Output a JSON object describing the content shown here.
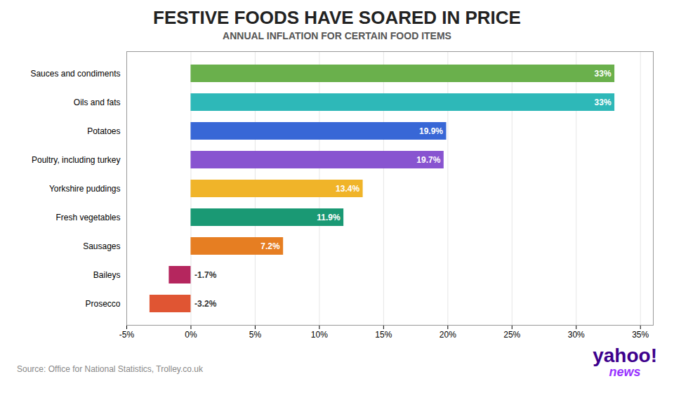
{
  "chart_data": {
    "type": "bar",
    "orientation": "horizontal",
    "title": "FESTIVE FOODS HAVE SOARED IN PRICE",
    "subtitle": "ANNUAL INFLATION FOR CERTAIN FOOD ITEMS",
    "categories": [
      "Sauces and condiments",
      "Oils and fats",
      "Potatoes",
      "Poultry, including turkey",
      "Yorkshire puddings",
      "Fresh vegetables",
      "Sausages",
      "Baileys",
      "Prosecco"
    ],
    "values": [
      33.0,
      33.0,
      19.9,
      19.7,
      13.4,
      11.9,
      7.2,
      -1.7,
      -3.2
    ],
    "value_labels": [
      "33%",
      "33%",
      "19.9%",
      "19.7%",
      "13.4%",
      "11.9%",
      "7.2%",
      "-1.7%",
      "-3.2%"
    ],
    "data_labels": true,
    "colors": [
      "#6ab04c",
      "#2eb8b8",
      "#3867d6",
      "#8854d0",
      "#f0b429",
      "#1a9974",
      "#e67e22",
      "#b5265e",
      "#e05533"
    ],
    "xlim": [
      -5,
      36
    ],
    "xticks": [
      {
        "value": -5,
        "label": "-5%"
      },
      {
        "value": 0,
        "label": "0%"
      },
      {
        "value": 5,
        "label": "5%"
      },
      {
        "value": 10,
        "label": "10%"
      },
      {
        "value": 15,
        "label": "15%"
      },
      {
        "value": 20,
        "label": "20%"
      },
      {
        "value": 25,
        "label": "25%"
      },
      {
        "value": 30,
        "label": "30%"
      },
      {
        "value": 35,
        "label": "35%"
      }
    ],
    "grid": true,
    "annotations": [
      {
        "text": "Source: Office for National Statistics, Trolley.co.uk"
      },
      {
        "text": "yahoo",
        "color": "#3d008c"
      },
      {
        "text": "!",
        "color": "#3d008c"
      },
      {
        "text": "news",
        "color": "#9933ff"
      }
    ]
  }
}
